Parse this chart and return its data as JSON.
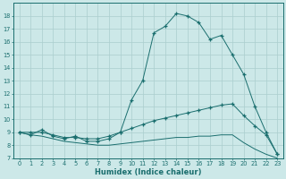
{
  "xlabel": "Humidex (Indice chaleur)",
  "background_color": "#cce8e8",
  "grid_color": "#aacece",
  "line_color": "#1a6e6e",
  "x_values": [
    0,
    1,
    2,
    3,
    4,
    5,
    6,
    7,
    8,
    9,
    10,
    11,
    12,
    13,
    14,
    15,
    16,
    17,
    18,
    19,
    20,
    21,
    22,
    23
  ],
  "series1": [
    9.0,
    8.8,
    9.2,
    8.7,
    8.5,
    8.7,
    8.3,
    8.3,
    8.5,
    9.0,
    11.5,
    13.0,
    16.7,
    17.2,
    18.2,
    18.0,
    17.5,
    16.2,
    16.5,
    15.0,
    13.5,
    11.0,
    9.0,
    7.3
  ],
  "series2": [
    9.0,
    9.0,
    9.0,
    8.8,
    8.6,
    8.6,
    8.5,
    8.5,
    8.7,
    9.0,
    9.3,
    9.6,
    9.9,
    10.1,
    10.3,
    10.5,
    10.7,
    10.9,
    11.1,
    11.2,
    10.3,
    9.5,
    8.8,
    7.3
  ],
  "series3": [
    9.0,
    8.8,
    8.7,
    8.5,
    8.3,
    8.2,
    8.1,
    8.0,
    8.0,
    8.1,
    8.2,
    8.3,
    8.4,
    8.5,
    8.6,
    8.6,
    8.7,
    8.7,
    8.8,
    8.8,
    8.2,
    7.7,
    7.3,
    7.0
  ],
  "ylim": [
    7,
    19
  ],
  "yticks": [
    7,
    8,
    9,
    10,
    11,
    12,
    13,
    14,
    15,
    16,
    17,
    18
  ],
  "xlim": [
    -0.5,
    23.5
  ],
  "figwidth": 3.2,
  "figheight": 2.0,
  "dpi": 100
}
